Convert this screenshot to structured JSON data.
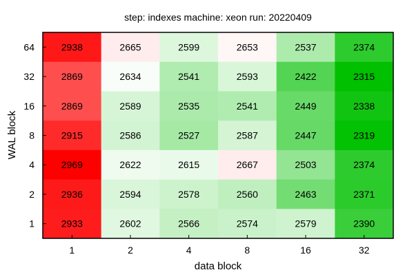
{
  "chart_data": {
    "type": "heatmap",
    "title": "step: indexes  machine: xeon  run: 20220409",
    "xlabel": "data block",
    "ylabel": "WAL block",
    "x_categories": [
      "1",
      "2",
      "4",
      "8",
      "16",
      "32"
    ],
    "y_categories": [
      "64",
      "32",
      "16",
      "8",
      "4",
      "2",
      "1"
    ],
    "values": [
      [
        2938,
        2665,
        2599,
        2653,
        2537,
        2374
      ],
      [
        2869,
        2634,
        2541,
        2593,
        2422,
        2315
      ],
      [
        2869,
        2589,
        2535,
        2541,
        2449,
        2338
      ],
      [
        2915,
        2586,
        2527,
        2587,
        2447,
        2319
      ],
      [
        2969,
        2622,
        2615,
        2667,
        2503,
        2374
      ],
      [
        2936,
        2594,
        2578,
        2560,
        2463,
        2371
      ],
      [
        2933,
        2602,
        2566,
        2574,
        2579,
        2390
      ]
    ],
    "color_scale": {
      "high": "#ff0000",
      "mid": "#ffffff",
      "low": "#00c000",
      "min_value": 2315,
      "mid_value": 2642,
      "max_value": 2969
    },
    "grid": false,
    "legend": "none"
  }
}
